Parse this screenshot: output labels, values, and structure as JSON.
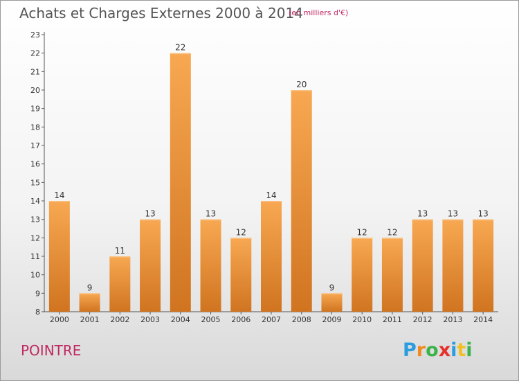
{
  "title": "Achats et Charges Externes 2000 à 2014",
  "unit": "(en milliers d'€)",
  "commune": "POINTRE",
  "logo": {
    "letters": [
      "P",
      "r",
      "o",
      "x",
      "i",
      "t",
      "i"
    ],
    "colors": [
      "#2a9de0",
      "#f08a1e",
      "#3bb34a",
      "#e8302a",
      "#2a9de0",
      "#f0c020",
      "#3bb34a"
    ]
  },
  "colors": {
    "bar": "#f5a04a",
    "bar_dark": "#c86a18",
    "grid": "#cccccc"
  },
  "chart_data": {
    "type": "bar",
    "title": "Achats et Charges Externes 2000 à 2014",
    "subtitle": "(en milliers d'€)",
    "categories": [
      "2000",
      "2001",
      "2002",
      "2003",
      "2004",
      "2005",
      "2006",
      "2007",
      "2008",
      "2009",
      "2010",
      "2011",
      "2012",
      "2013",
      "2014"
    ],
    "values": [
      14,
      9,
      11,
      13,
      22,
      13,
      12,
      14,
      20,
      9,
      12,
      12,
      13,
      13,
      13
    ],
    "ylim": [
      8,
      23
    ],
    "yticks": [
      8,
      9,
      10,
      11,
      12,
      13,
      14,
      15,
      16,
      17,
      18,
      19,
      20,
      21,
      22,
      23
    ],
    "grid": false,
    "data_labels": true
  }
}
